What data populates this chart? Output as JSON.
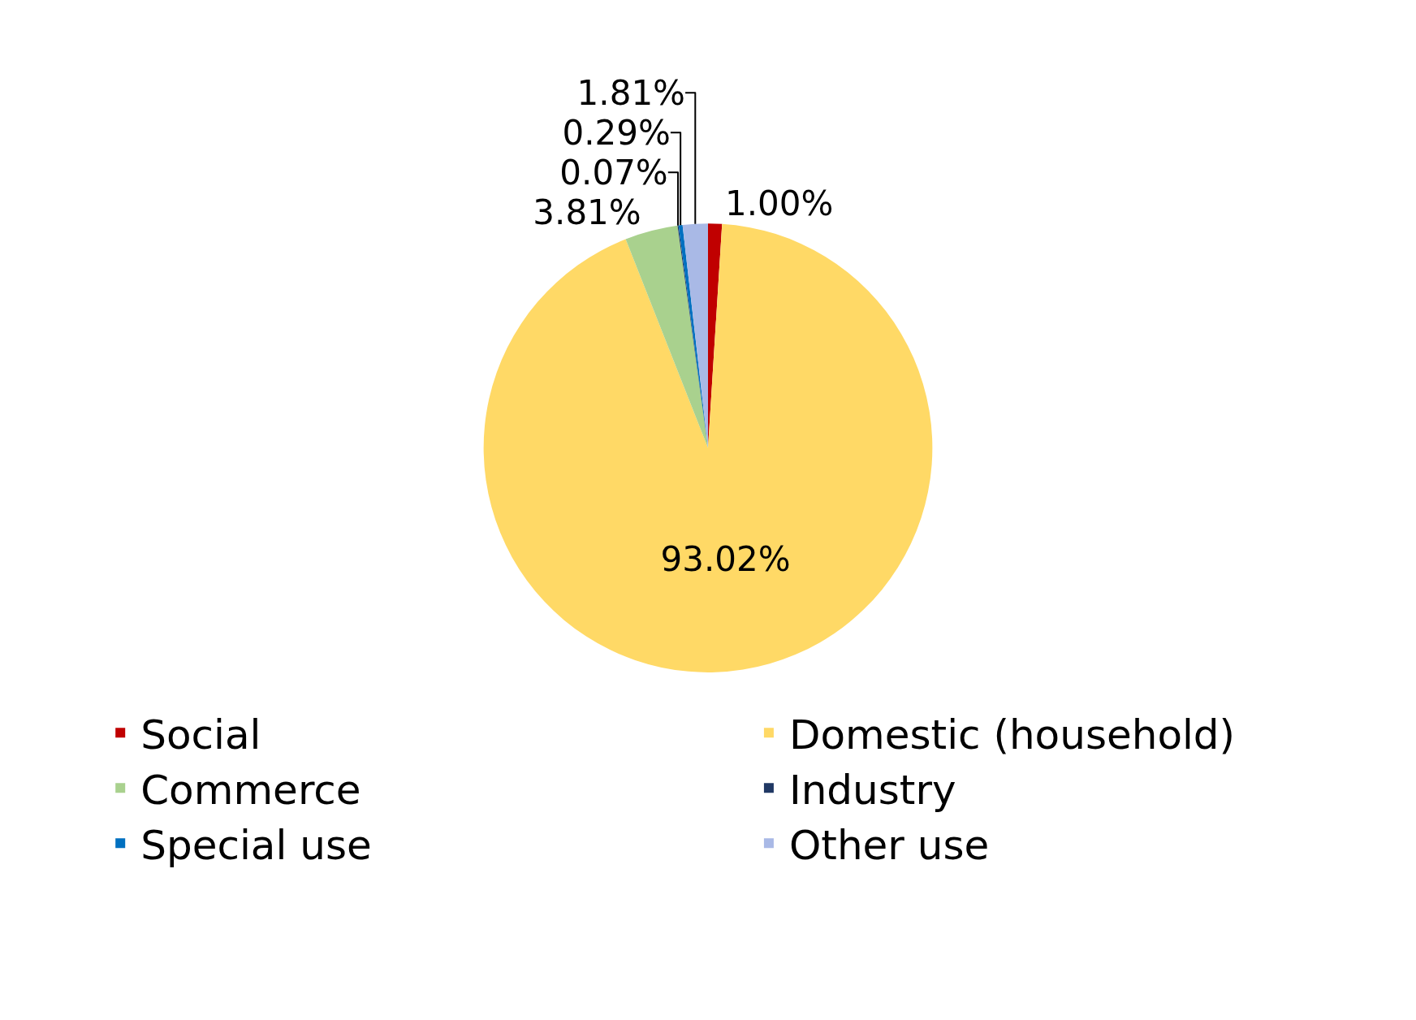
{
  "chart_data": {
    "type": "pie",
    "categories": [
      "Social",
      "Domestic (household)",
      "Commerce",
      "Industry",
      "Special use",
      "Other use"
    ],
    "values": [
      1.0,
      93.02,
      3.81,
      0.07,
      0.29,
      1.81
    ],
    "value_labels": [
      "1.00%",
      "93.02%",
      "3.81%",
      "0.07%",
      "0.29%",
      "1.81%"
    ],
    "colors": [
      "#c00000",
      "#ffd966",
      "#a9d18e",
      "#203864",
      "#0070c0",
      "#a9b9e6"
    ],
    "legend": "bottom"
  }
}
